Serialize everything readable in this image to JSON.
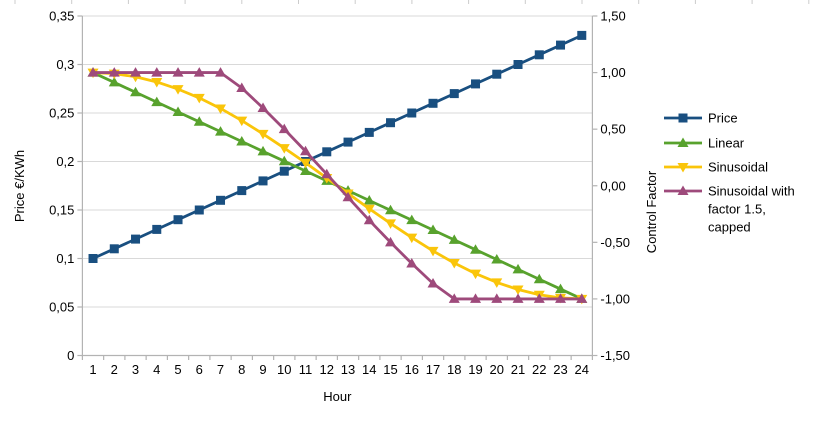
{
  "page": {
    "background": "#ffffff"
  },
  "decor": {
    "top_cell_ticks": {
      "count": 15,
      "start_x": 15,
      "spacing": 56.7,
      "length": 4,
      "color": "#cccccc"
    }
  },
  "styles": {
    "axis_color": "#b3b3b3",
    "grid_color": "#d9d9d9",
    "text_color": "#000000",
    "plot_background": "#ffffff"
  },
  "chart_data": {
    "type": "line",
    "title": "",
    "legend_position": "right",
    "grid": "horizontal-major-left-axis",
    "x_axis": {
      "label": "Hour",
      "categories": [
        "1",
        "2",
        "3",
        "4",
        "5",
        "6",
        "7",
        "8",
        "9",
        "10",
        "11",
        "12",
        "13",
        "14",
        "15",
        "16",
        "17",
        "18",
        "19",
        "20",
        "21",
        "22",
        "23",
        "24"
      ]
    },
    "left_axis": {
      "label": "Price €/KWh",
      "min": 0,
      "max": 0.35,
      "tick_values": [
        0,
        0.05,
        0.1,
        0.15,
        0.2,
        0.25,
        0.3,
        0.35
      ],
      "tick_labels": [
        "0",
        "0,05",
        "0,1",
        "0,15",
        "0,2",
        "0,25",
        "0,3",
        "0,35"
      ]
    },
    "right_axis": {
      "label": "Control Factor",
      "min": -1.5,
      "max": 1.5,
      "tick_values": [
        -1.5,
        -1.0,
        -0.5,
        0.0,
        0.5,
        1.0,
        1.5
      ],
      "tick_labels": [
        "-1,50",
        "-1,00",
        "-0,50",
        "0,00",
        "0,50",
        "1,00",
        "1,50"
      ]
    },
    "series": [
      {
        "name": "Price",
        "legend_lines": [
          "Price"
        ],
        "axis": "left",
        "color": "#194f80",
        "marker": "square",
        "values": [
          0.1,
          0.11,
          0.12,
          0.13,
          0.14,
          0.15,
          0.16,
          0.17,
          0.18,
          0.19,
          0.2,
          0.21,
          0.22,
          0.23,
          0.24,
          0.25,
          0.26,
          0.27,
          0.28,
          0.29,
          0.3,
          0.31,
          0.32,
          0.33
        ]
      },
      {
        "name": "Linear",
        "legend_lines": [
          "Linear"
        ],
        "axis": "right",
        "color": "#58a22d",
        "marker": "triangle-up",
        "values": [
          1.0,
          0.913,
          0.826,
          0.739,
          0.652,
          0.565,
          0.478,
          0.391,
          0.304,
          0.217,
          0.13,
          0.043,
          -0.043,
          -0.13,
          -0.217,
          -0.304,
          -0.391,
          -0.478,
          -0.565,
          -0.652,
          -0.739,
          -0.826,
          -0.913,
          -1.0
        ]
      },
      {
        "name": "Sinusoidal",
        "legend_lines": [
          "Sinusoidal"
        ],
        "axis": "right",
        "color": "#fac50a",
        "marker": "triangle-down",
        "values": [
          1.0,
          0.991,
          0.963,
          0.917,
          0.854,
          0.776,
          0.683,
          0.576,
          0.458,
          0.333,
          0.203,
          0.068,
          -0.068,
          -0.203,
          -0.333,
          -0.458,
          -0.576,
          -0.683,
          -0.776,
          -0.854,
          -0.917,
          -0.963,
          -0.991,
          -1.0
        ]
      },
      {
        "name": "Sinusoidal with factor 1.5, capped",
        "legend_lines": [
          "Sinusoidal with",
          "factor 1.5,",
          "capped"
        ],
        "axis": "right",
        "color": "#9e4a7b",
        "marker": "triangle-up",
        "values": [
          1.0,
          1.0,
          1.0,
          1.0,
          1.0,
          1.0,
          1.0,
          0.864,
          0.687,
          0.5,
          0.305,
          0.102,
          -0.102,
          -0.305,
          -0.5,
          -0.687,
          -0.864,
          -1.0,
          -1.0,
          -1.0,
          -1.0,
          -1.0,
          -1.0,
          -1.0
        ]
      }
    ]
  }
}
